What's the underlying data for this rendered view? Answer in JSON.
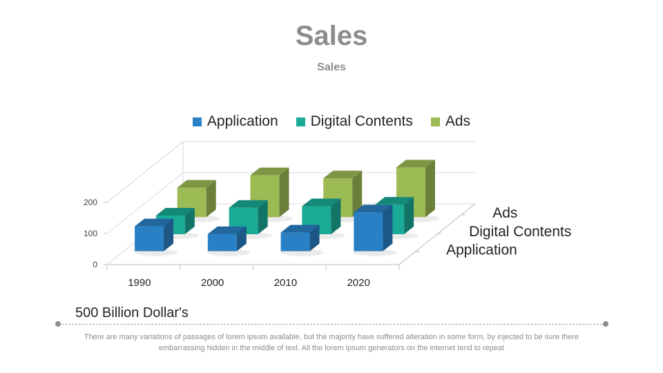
{
  "slide": {
    "title": "Sales",
    "subtitle": "Sales",
    "caption": "500 Billion Dollar's",
    "body_text": "There are many variations of passages of lorem ipsum available, but the majority have suffered alteration in some form, by injected to be sure there embarrassing hidden in the middle of text. All the lorem ipsum generators on the internet tend to repeat"
  },
  "legend": [
    {
      "label": "Application",
      "color": "#2980c4"
    },
    {
      "label": "Digital Contents",
      "color": "#1aab96"
    },
    {
      "label": "Ads",
      "color": "#9dbb55"
    }
  ],
  "chart_data": {
    "type": "bar",
    "style": "3d-clustered",
    "title": "Sales",
    "categories": [
      "1990",
      "2000",
      "2010",
      "2020"
    ],
    "series": [
      {
        "name": "Application",
        "color": "#2980c4",
        "values": [
          80,
          55,
          60,
          125
        ]
      },
      {
        "name": "Digital Contents",
        "color": "#1aab96",
        "values": [
          60,
          85,
          90,
          95
        ]
      },
      {
        "name": "Ads",
        "color": "#9dbb55",
        "values": [
          95,
          135,
          125,
          160
        ]
      }
    ],
    "yticks": [
      0,
      100,
      200
    ],
    "ylim": [
      0,
      200
    ],
    "depth_labels": [
      "Application",
      "Digital Contents",
      "Ads"
    ],
    "xlabel": "",
    "ylabel": "",
    "legend_position": "top"
  }
}
